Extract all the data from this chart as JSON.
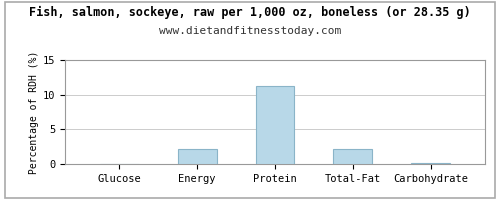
{
  "title": "Fish, salmon, sockeye, raw per 1,000 oz, boneless (or 28.35 g)",
  "subtitle": "www.dietandfitnesstoday.com",
  "categories": [
    "Glucose",
    "Energy",
    "Protein",
    "Total-Fat",
    "Carbohydrate"
  ],
  "values": [
    0.0,
    2.1,
    11.2,
    2.1,
    0.1
  ],
  "bar_color": "#b8d8e8",
  "bar_edge_color": "#8ab4c8",
  "ylabel": "Percentage of RDH (%)",
  "ylim": [
    0,
    15
  ],
  "yticks": [
    0,
    5,
    10,
    15
  ],
  "background_color": "#ffffff",
  "grid_color": "#cccccc",
  "title_fontsize": 8.5,
  "subtitle_fontsize": 8,
  "tick_fontsize": 7.5,
  "ylabel_fontsize": 7,
  "outer_border_color": "#aaaaaa"
}
